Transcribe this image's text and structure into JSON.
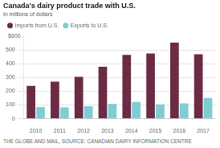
{
  "chart_data": {
    "type": "bar",
    "title": "Canada's dairy product trade with U.S.",
    "subtitle": "In millions of dollars",
    "categories": [
      "2010",
      "2011",
      "2012",
      "2013",
      "2014",
      "2015",
      "2016",
      "2017"
    ],
    "series": [
      {
        "name": "Imports from U.S.",
        "color": "#6b2b45",
        "values": [
          240,
          270,
          305,
          378,
          465,
          475,
          555,
          470
        ]
      },
      {
        "name": "Exports to U.S.",
        "color": "#7ecdd4",
        "values": [
          85,
          82,
          92,
          108,
          122,
          105,
          112,
          152
        ]
      }
    ],
    "ylim": [
      0,
      600
    ],
    "yticks": [
      0,
      100,
      200,
      300,
      400,
      500
    ],
    "annotations": [
      "$600",
      "THE GLOBE AND MAIL, SOURCE: CANADIAN DAIRY INFORMATION CENTRE"
    ],
    "grid": true,
    "legend": "top"
  }
}
